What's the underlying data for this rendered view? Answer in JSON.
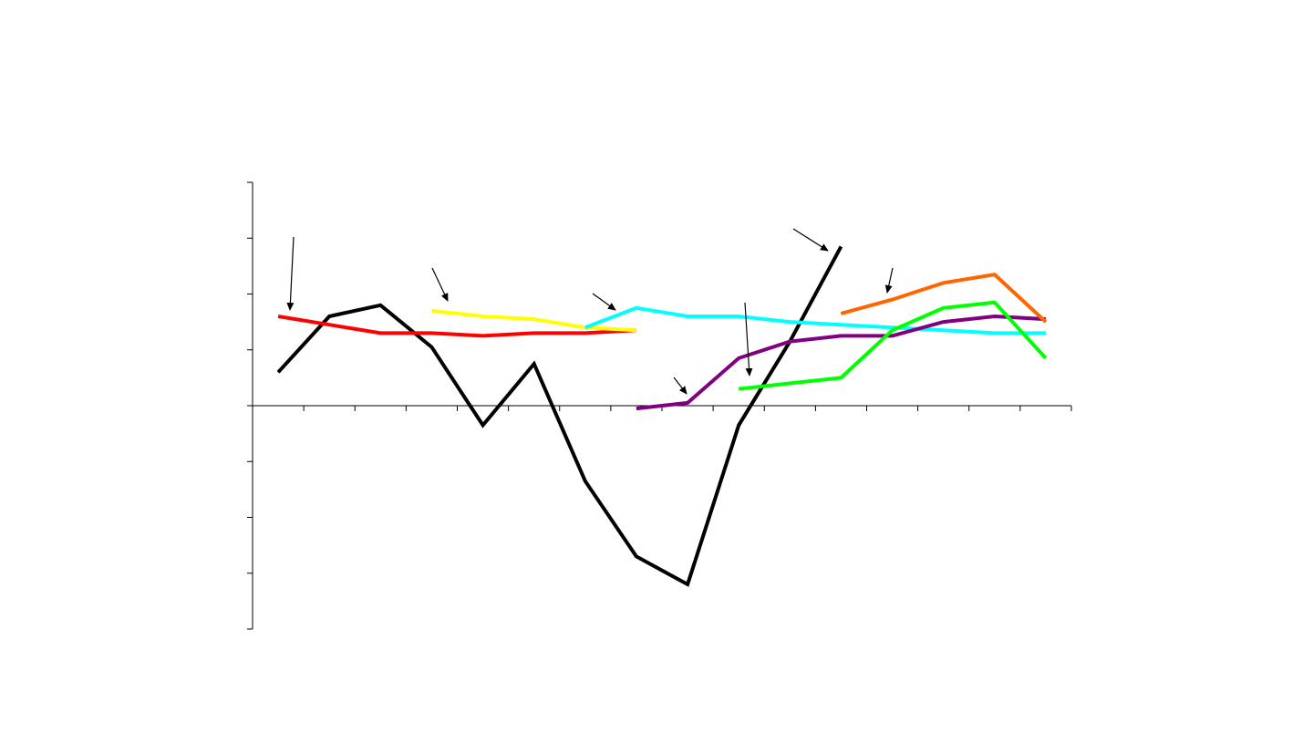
{
  "chart_data": {
    "type": "line",
    "title": "",
    "xlabel": "",
    "ylabel": "",
    "x": [
      1,
      2,
      3,
      4,
      5,
      6,
      7,
      8,
      9,
      10,
      11,
      12,
      13,
      14,
      15,
      16
    ],
    "ylim": [
      -4,
      4
    ],
    "y_ticks": [
      -4,
      -3,
      -2,
      -1,
      0,
      1,
      2,
      3,
      4
    ],
    "grid": false,
    "legend": "none",
    "series": [
      {
        "color": "#000000",
        "x": [
          1,
          2,
          3,
          4,
          5,
          6,
          7,
          8,
          9,
          10,
          11,
          12
        ],
        "values": [
          0.6,
          1.6,
          1.8,
          1.05,
          -0.35,
          0.75,
          -1.35,
          -2.7,
          -3.2,
          -0.35,
          1.15,
          2.85
        ]
      },
      {
        "color": "#ff0000",
        "x": [
          1,
          2,
          3,
          4,
          5,
          6,
          7,
          8
        ],
        "values": [
          1.6,
          1.45,
          1.3,
          1.3,
          1.25,
          1.3,
          1.3,
          1.35
        ]
      },
      {
        "color": "#ffff00",
        "x": [
          4,
          5,
          6,
          7,
          8
        ],
        "values": [
          1.7,
          1.6,
          1.55,
          1.4,
          1.35
        ]
      },
      {
        "color": "#00ffff",
        "x": [
          7,
          8,
          9,
          10,
          11,
          12,
          13,
          14,
          15,
          16
        ],
        "values": [
          1.4,
          1.75,
          1.6,
          1.6,
          1.5,
          1.45,
          1.4,
          1.35,
          1.3,
          1.3
        ]
      },
      {
        "color": "#800080",
        "x": [
          8,
          9,
          10,
          11,
          12,
          13,
          14,
          15,
          16
        ],
        "values": [
          -0.05,
          0.05,
          0.85,
          1.15,
          1.25,
          1.25,
          1.5,
          1.6,
          1.55
        ]
      },
      {
        "color": "#00ff00",
        "x": [
          10,
          12,
          13,
          14,
          15,
          16
        ],
        "values": [
          0.3,
          0.5,
          1.35,
          1.75,
          1.85,
          0.85
        ]
      },
      {
        "color": "#ff6600",
        "x": [
          12,
          13,
          14,
          15,
          16
        ],
        "values": [
          1.65,
          1.9,
          2.2,
          2.35,
          1.5
        ]
      }
    ],
    "annotation_arrows": 7
  }
}
